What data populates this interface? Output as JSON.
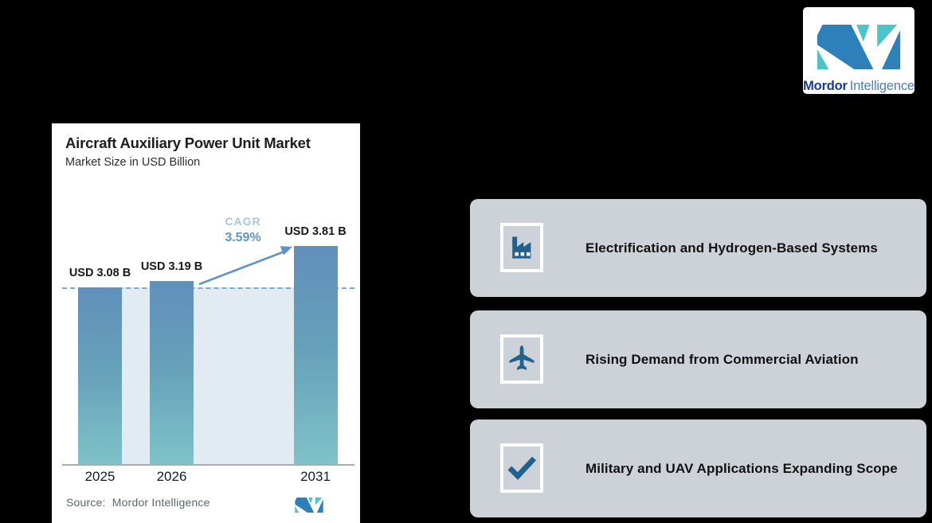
{
  "page": {
    "background": "#000000"
  },
  "logo": {
    "name_bold": "Mordor",
    "name_light": "Intelligence"
  },
  "chart_card": {
    "title": "Aircraft Auxiliary Power Unit Market",
    "subtitle": "Market Size in USD Billion",
    "cagr_label": "CAGR",
    "cagr_value": "3.59%",
    "source_label": "Source:",
    "source_value": "Mordor Intelligence"
  },
  "chart_data": {
    "type": "bar",
    "title": "Aircraft Auxiliary Power Unit Market",
    "subtitle": "Market Size in USD Billion",
    "categories": [
      "2025",
      "2026",
      "2031"
    ],
    "values": [
      3.08,
      3.19,
      3.81
    ],
    "bar_labels": [
      "USD 3.08 B",
      "USD 3.19 B",
      "USD 3.81 B"
    ],
    "cagr_percent": "3.59%",
    "baseline_reference_value": 3.08,
    "ylim": [
      0,
      4.2
    ],
    "grid": "off",
    "annotations": [
      "CAGR 3.59%",
      "dashed reference line at 2025 value with growth arrow to 2031 bar"
    ]
  },
  "highlights": [
    {
      "icon": "factory-icon",
      "label": "Electrification and Hydrogen-Based Systems"
    },
    {
      "icon": "airplane-icon",
      "label": "Rising Demand from Commercial Aviation"
    },
    {
      "icon": "checkmark-icon",
      "label": "Military and UAV Applications Expanding Scope"
    }
  ],
  "colors": {
    "background": "#000000",
    "bar_gradient_top": "#6090bb",
    "bar_gradient_bottom": "#7fc2c8",
    "band": "#e2ebf2",
    "dashed_line": "#7ca9cf",
    "arrow": "#5f94c2",
    "cagr_label": "#a7c7e1",
    "cagr_value": "#5e96c5",
    "highlight_card_bg": "#cdd2d9",
    "icon_blue": "#20618e",
    "brand_teal": "#4cc5c9",
    "brand_blue": "#2e80ba",
    "brand_navy": "#1c3a8e",
    "brand_light_blue": "#4d7db6"
  }
}
